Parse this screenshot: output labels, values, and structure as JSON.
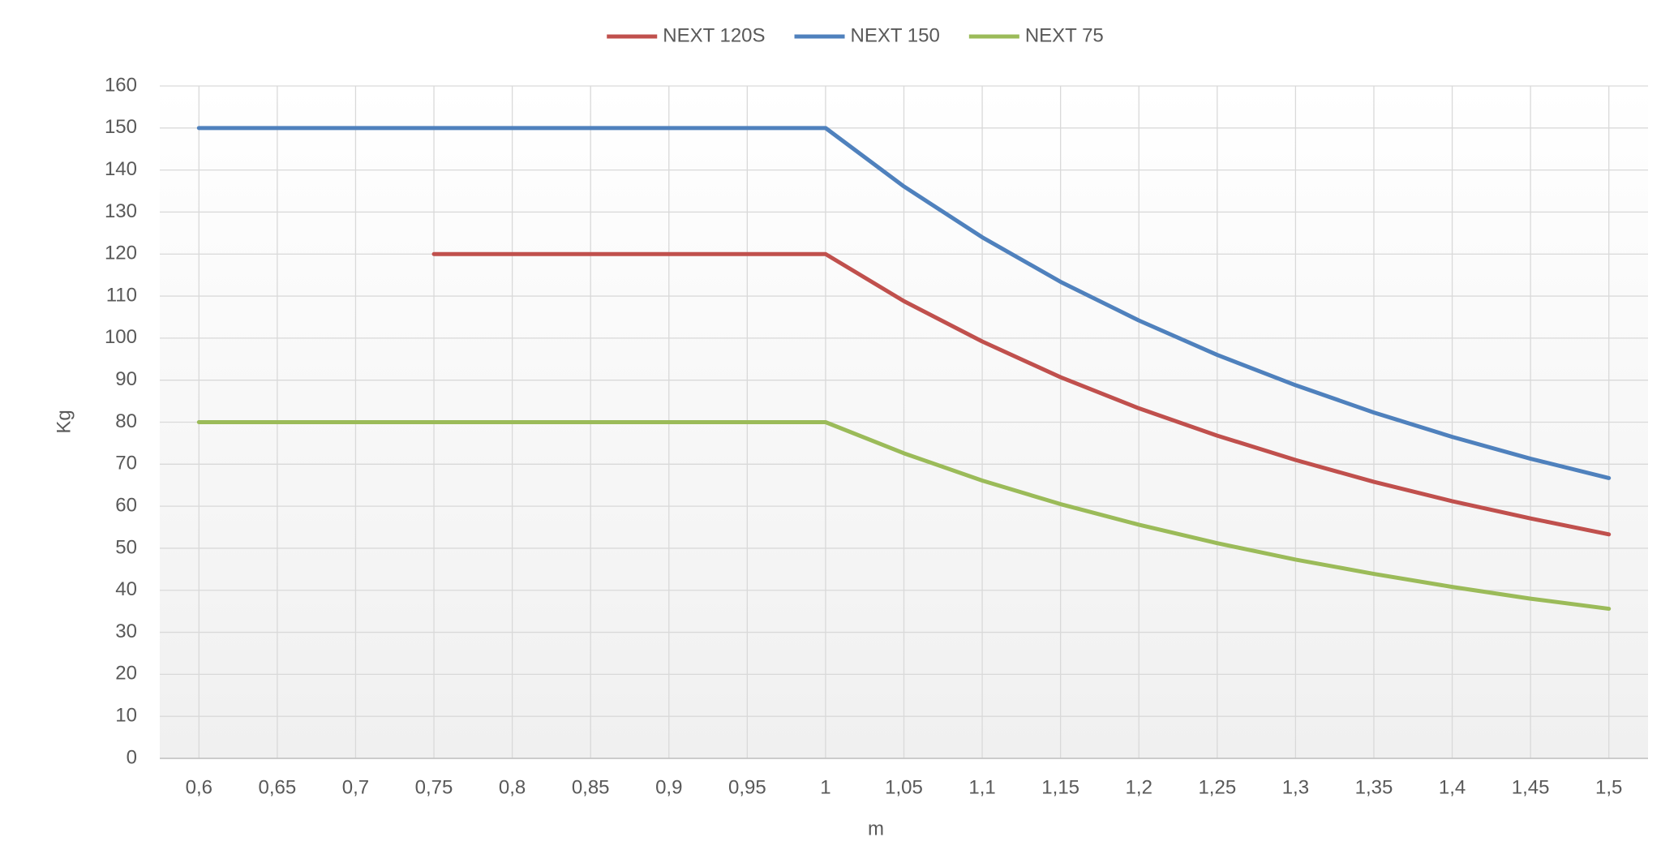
{
  "chart_data": {
    "type": "line",
    "x_label": "m",
    "y_label": "Kg",
    "categories": [
      "0,6",
      "0,65",
      "0,7",
      "0,75",
      "0,8",
      "0,85",
      "0,9",
      "0,95",
      "1",
      "1,05",
      "1,1",
      "1,15",
      "1,2",
      "1,25",
      "1,3",
      "1,35",
      "1,4",
      "1,45",
      "1,5"
    ],
    "series": [
      {
        "name": "NEXT 120S",
        "color": "#c0504d",
        "values": [
          null,
          null,
          null,
          120,
          120,
          120,
          120,
          120,
          120,
          108.8,
          99.2,
          90.7,
          83.3,
          76.8,
          71.0,
          65.8,
          61.2,
          57.1,
          53.3
        ]
      },
      {
        "name": "NEXT 150",
        "color": "#4f81bd",
        "values": [
          150,
          150,
          150,
          150,
          150,
          150,
          150,
          150,
          150,
          136.1,
          124.0,
          113.4,
          104.2,
          96.0,
          88.8,
          82.3,
          76.5,
          71.3,
          66.7
        ]
      },
      {
        "name": "NEXT 75",
        "color": "#9bbb59",
        "values": [
          80,
          80,
          80,
          80,
          80,
          80,
          80,
          80,
          80,
          72.6,
          66.1,
          60.5,
          55.6,
          51.2,
          47.3,
          43.9,
          40.8,
          38.0,
          35.6
        ]
      }
    ],
    "ylim": [
      0,
      160
    ],
    "yticks": [
      0,
      10,
      20,
      30,
      40,
      50,
      60,
      70,
      80,
      90,
      100,
      110,
      120,
      130,
      140,
      150,
      160
    ],
    "grid": true,
    "legend": "top"
  }
}
